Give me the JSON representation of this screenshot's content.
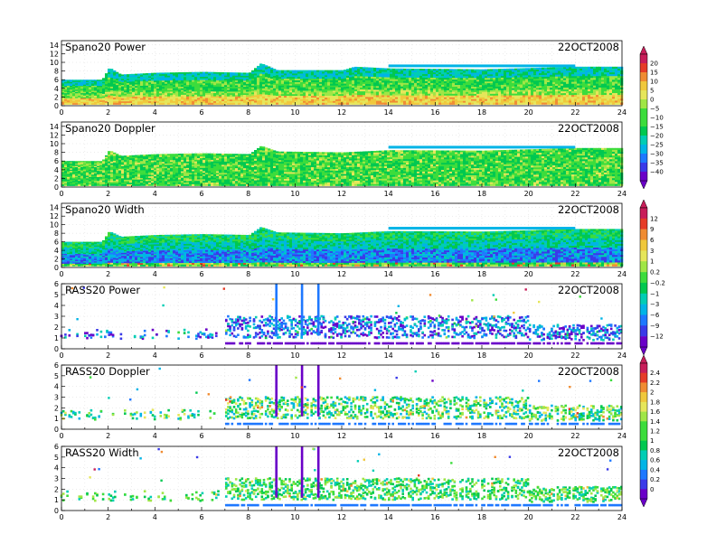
{
  "date_label": "22OCT2008",
  "chart_data": [
    {
      "type": "heatmap",
      "title": "Spano20 Power",
      "date": "22OCT2008",
      "x_ticks": [
        0,
        2,
        4,
        6,
        8,
        10,
        12,
        14,
        16,
        18,
        20,
        22,
        24
      ],
      "xlim": [
        0,
        24
      ],
      "y_ticks": [
        0,
        2,
        4,
        6,
        8,
        10,
        12,
        14
      ],
      "ylim": [
        0,
        15
      ],
      "data_top_km": [
        [
          0,
          6
        ],
        [
          1.7,
          6
        ],
        [
          2,
          8.8
        ],
        [
          2.5,
          7.2
        ],
        [
          4,
          7.6
        ],
        [
          6,
          7.8
        ],
        [
          8,
          7.6
        ],
        [
          8.5,
          9.8
        ],
        [
          9.2,
          8.2
        ],
        [
          12,
          8.2
        ],
        [
          12.5,
          9.0
        ],
        [
          14,
          8.6
        ],
        [
          18,
          8.4
        ],
        [
          22,
          9.0
        ],
        [
          24,
          9.0
        ]
      ]
    },
    {
      "type": "heatmap",
      "title": "Spano20 Doppler",
      "date": "22OCT2008",
      "x_ticks": [
        0,
        2,
        4,
        6,
        8,
        10,
        12,
        14,
        16,
        18,
        20,
        22,
        24
      ],
      "xlim": [
        0,
        24
      ],
      "y_ticks": [
        0,
        2,
        4,
        6,
        8,
        10,
        12,
        14
      ],
      "ylim": [
        0,
        15
      ],
      "data_top_km": [
        [
          0,
          6
        ],
        [
          1.7,
          6
        ],
        [
          2,
          8.5
        ],
        [
          2.5,
          7.2
        ],
        [
          4,
          7.6
        ],
        [
          6,
          7.8
        ],
        [
          8,
          7.6
        ],
        [
          8.5,
          9.5
        ],
        [
          9.2,
          8.2
        ],
        [
          12,
          8.0
        ],
        [
          14,
          8.5
        ],
        [
          18,
          8.4
        ],
        [
          22,
          9.0
        ],
        [
          24,
          9.0
        ]
      ]
    },
    {
      "type": "heatmap",
      "title": "Spano20 Width",
      "date": "22OCT2008",
      "x_ticks": [
        0,
        2,
        4,
        6,
        8,
        10,
        12,
        14,
        16,
        18,
        20,
        22,
        24
      ],
      "xlim": [
        0,
        24
      ],
      "y_ticks": [
        0,
        2,
        4,
        6,
        8,
        10,
        12,
        14
      ],
      "ylim": [
        0,
        15
      ],
      "data_top_km": [
        [
          0,
          6
        ],
        [
          1.7,
          6
        ],
        [
          2,
          8.5
        ],
        [
          2.5,
          7.2
        ],
        [
          4,
          7.6
        ],
        [
          6,
          7.8
        ],
        [
          8,
          7.6
        ],
        [
          8.5,
          9.5
        ],
        [
          9.2,
          8.2
        ],
        [
          12,
          8.0
        ],
        [
          14,
          8.5
        ],
        [
          18,
          8.4
        ],
        [
          22,
          9.0
        ],
        [
          24,
          9.0
        ]
      ]
    },
    {
      "type": "scatter",
      "title": "RASS20 Power",
      "date": "22OCT2008",
      "x_ticks": [
        0,
        2,
        4,
        6,
        8,
        10,
        12,
        14,
        16,
        18,
        20,
        22,
        24
      ],
      "xlim": [
        0,
        24
      ],
      "y_ticks": [
        0,
        1,
        2,
        3,
        4,
        5,
        6
      ],
      "ylim": [
        0,
        6
      ],
      "spikes_hour": [
        9.2,
        10.3,
        11.0
      ]
    },
    {
      "type": "scatter",
      "title": "RASS20 Doppler",
      "date": "22OCT2008",
      "x_ticks": [
        0,
        2,
        4,
        6,
        8,
        10,
        12,
        14,
        16,
        18,
        20,
        22,
        24
      ],
      "xlim": [
        0,
        24
      ],
      "y_ticks": [
        0,
        1,
        2,
        3,
        4,
        5,
        6
      ],
      "ylim": [
        0,
        6
      ],
      "spikes_hour": [
        9.2,
        10.3,
        11.0
      ]
    },
    {
      "type": "scatter",
      "title": "RASS20 Width",
      "date": "22OCT2008",
      "x_ticks": [
        0,
        2,
        4,
        6,
        8,
        10,
        12,
        14,
        16,
        18,
        20,
        22,
        24
      ],
      "xlim": [
        0,
        24
      ],
      "y_ticks": [
        0,
        1,
        2,
        3,
        4,
        5,
        6
      ],
      "ylim": [
        0,
        6
      ],
      "spikes_hour": [
        9.2,
        10.3,
        11.0
      ]
    }
  ],
  "colorbars": [
    {
      "name": "spano-power-doppler",
      "ticks": [
        "20",
        "15",
        "10",
        "5",
        "0",
        "−5",
        "−10",
        "−15",
        "−20",
        "−25",
        "−30",
        "−35",
        "−40"
      ]
    },
    {
      "name": "spano-width-rass-power",
      "ticks": [
        "12",
        "9",
        "6",
        "3",
        "1",
        "0.2",
        "−0.2",
        "−1",
        "−3",
        "−6",
        "−9",
        "−12"
      ]
    },
    {
      "name": "rass-doppler-width",
      "ticks": [
        "2.4",
        "2.2",
        "2",
        "1.8",
        "1.6",
        "1.4",
        "1.2",
        "1",
        "0.8",
        "0.6",
        "0.4",
        "0.2",
        "0"
      ]
    }
  ],
  "colors": {
    "palette": [
      "#6a00c8",
      "#3a3ae8",
      "#1e78ff",
      "#00b4e6",
      "#00cdb4",
      "#00c850",
      "#3cdc3c",
      "#a0e646",
      "#e6e65a",
      "#f0c83c",
      "#f08c32",
      "#e63c28",
      "#c81e5a"
    ]
  }
}
